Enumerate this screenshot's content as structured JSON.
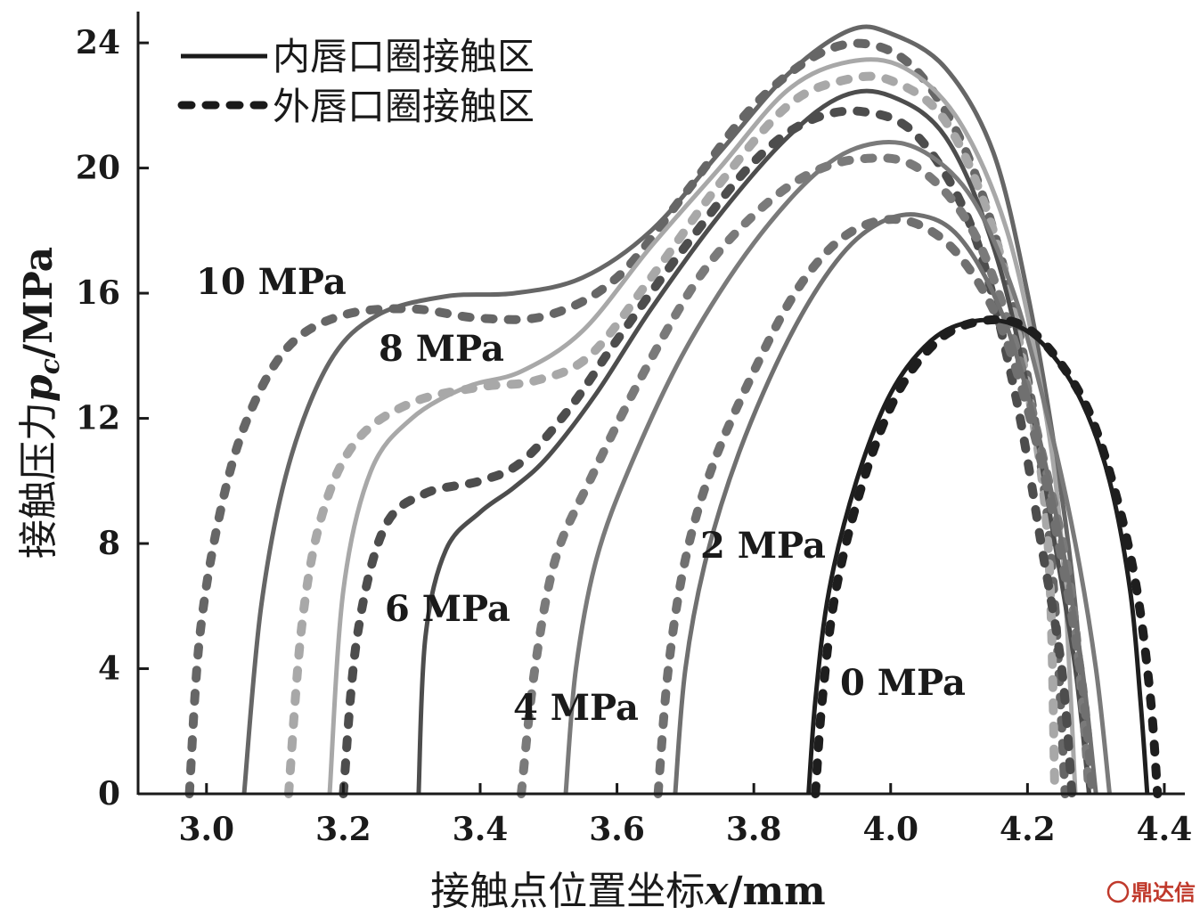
{
  "chart_data": {
    "type": "line",
    "xlabel": {
      "prefix": "接触点位置坐标",
      "symbol": "x",
      "unit": "/mm"
    },
    "ylabel": {
      "prefix": "接触压力",
      "symbol": "p",
      "subscript": "c",
      "unit": "/MPa"
    },
    "xlim": [
      2.9,
      4.43
    ],
    "ylim": [
      0,
      25
    ],
    "xticks": [
      "3.0",
      "3.2",
      "3.4",
      "3.6",
      "3.8",
      "4.0",
      "4.2",
      "4.4"
    ],
    "xtick_values": [
      3.0,
      3.2,
      3.4,
      3.6,
      3.8,
      4.0,
      4.2,
      4.4
    ],
    "yticks": [
      "0",
      "4",
      "8",
      "12",
      "16",
      "20",
      "24"
    ],
    "ytick_values": [
      0,
      4,
      8,
      12,
      16,
      20,
      24
    ],
    "grid": false,
    "legend": {
      "placement": "top-left",
      "entries": [
        {
          "label": "内唇口圈接触区",
          "style": "solid"
        },
        {
          "label": "外唇口圈接触区",
          "style": "dotted"
        }
      ]
    },
    "series": [
      {
        "name": "10 MPa",
        "color": "#666666",
        "points": {
          "solid": [
            [
              3.055,
              0
            ],
            [
              3.08,
              6
            ],
            [
              3.12,
              10.5
            ],
            [
              3.18,
              13.8
            ],
            [
              3.25,
              15.3
            ],
            [
              3.35,
              15.9
            ],
            [
              3.45,
              16
            ],
            [
              3.55,
              16.5
            ],
            [
              3.65,
              18
            ],
            [
              3.75,
              20.5
            ],
            [
              3.85,
              23
            ],
            [
              3.94,
              24.4
            ],
            [
              4.0,
              24.3
            ],
            [
              4.08,
              23.2
            ],
            [
              4.15,
              20.5
            ],
            [
              4.2,
              16
            ],
            [
              4.24,
              11
            ],
            [
              4.27,
              6
            ],
            [
              4.29,
              0
            ]
          ],
          "dotted": [
            [
              2.975,
              0
            ],
            [
              2.99,
              5
            ],
            [
              3.02,
              9
            ],
            [
              3.06,
              12
            ],
            [
              3.12,
              14.3
            ],
            [
              3.2,
              15.3
            ],
            [
              3.3,
              15.5
            ],
            [
              3.4,
              15.2
            ],
            [
              3.5,
              15.3
            ],
            [
              3.6,
              16.5
            ],
            [
              3.7,
              19.2
            ],
            [
              3.8,
              22
            ],
            [
              3.9,
              23.7
            ],
            [
              3.98,
              23.9
            ],
            [
              4.05,
              22.8
            ],
            [
              4.12,
              20
            ],
            [
              4.18,
              15.5
            ],
            [
              4.22,
              10.5
            ],
            [
              4.24,
              6
            ],
            [
              4.255,
              0
            ]
          ]
        }
      },
      {
        "name": "8 MPa",
        "color": "#a8a8a8",
        "points": {
          "solid": [
            [
              3.18,
              0
            ],
            [
              3.2,
              6.5
            ],
            [
              3.24,
              10.3
            ],
            [
              3.3,
              12
            ],
            [
              3.38,
              13
            ],
            [
              3.46,
              13.5
            ],
            [
              3.55,
              14.8
            ],
            [
              3.65,
              17.5
            ],
            [
              3.75,
              20
            ],
            [
              3.85,
              22.5
            ],
            [
              3.94,
              23.4
            ],
            [
              4.02,
              23.2
            ],
            [
              4.1,
              21.5
            ],
            [
              4.17,
              18
            ],
            [
              4.22,
              13
            ],
            [
              4.25,
              8
            ],
            [
              4.27,
              0
            ]
          ],
          "dotted": [
            [
              3.12,
              0
            ],
            [
              3.14,
              5.5
            ],
            [
              3.17,
              9
            ],
            [
              3.22,
              11.3
            ],
            [
              3.3,
              12.5
            ],
            [
              3.4,
              13
            ],
            [
              3.48,
              13.2
            ],
            [
              3.56,
              14
            ],
            [
              3.65,
              16.5
            ],
            [
              3.75,
              19.5
            ],
            [
              3.85,
              22
            ],
            [
              3.93,
              22.8
            ],
            [
              4.0,
              22.8
            ],
            [
              4.08,
              21.5
            ],
            [
              4.15,
              18
            ],
            [
              4.2,
              13
            ],
            [
              4.23,
              8
            ],
            [
              4.24,
              0
            ]
          ]
        }
      },
      {
        "name": "6 MPa",
        "color": "#4d4d4d",
        "points": {
          "solid": [
            [
              3.31,
              0
            ],
            [
              3.32,
              5
            ],
            [
              3.35,
              7.8
            ],
            [
              3.4,
              9
            ],
            [
              3.45,
              9.8
            ],
            [
              3.5,
              10.8
            ],
            [
              3.57,
              12.8
            ],
            [
              3.65,
              15.5
            ],
            [
              3.75,
              18.5
            ],
            [
              3.85,
              21
            ],
            [
              3.93,
              22.3
            ],
            [
              4.0,
              22.3
            ],
            [
              4.08,
              21
            ],
            [
              4.15,
              17.5
            ],
            [
              4.2,
              13
            ],
            [
              4.24,
              8
            ],
            [
              4.27,
              4
            ],
            [
              4.29,
              0
            ]
          ],
          "dotted": [
            [
              3.2,
              0
            ],
            [
              3.22,
              5
            ],
            [
              3.26,
              8.5
            ],
            [
              3.32,
              9.6
            ],
            [
              3.4,
              10
            ],
            [
              3.46,
              10.6
            ],
            [
              3.53,
              12.3
            ],
            [
              3.6,
              14.5
            ],
            [
              3.7,
              17.5
            ],
            [
              3.8,
              20.2
            ],
            [
              3.88,
              21.5
            ],
            [
              3.96,
              21.8
            ],
            [
              4.04,
              21
            ],
            [
              4.12,
              18
            ],
            [
              4.18,
              13
            ],
            [
              4.22,
              8
            ],
            [
              4.25,
              4
            ],
            [
              4.265,
              0
            ]
          ]
        }
      },
      {
        "name": "4 MPa",
        "color": "#7a7a7a",
        "points": {
          "solid": [
            [
              3.525,
              0
            ],
            [
              3.54,
              4
            ],
            [
              3.57,
              7.5
            ],
            [
              3.62,
              10.5
            ],
            [
              3.7,
              14.2
            ],
            [
              3.8,
              17.6
            ],
            [
              3.9,
              20
            ],
            [
              3.98,
              20.8
            ],
            [
              4.05,
              20.5
            ],
            [
              4.12,
              19
            ],
            [
              4.18,
              16
            ],
            [
              4.23,
              12
            ],
            [
              4.27,
              8
            ],
            [
              4.3,
              4
            ],
            [
              4.32,
              0
            ]
          ],
          "dotted": [
            [
              3.46,
              0
            ],
            [
              3.48,
              4
            ],
            [
              3.51,
              7.5
            ],
            [
              3.56,
              10
            ],
            [
              3.64,
              13.5
            ],
            [
              3.72,
              16.5
            ],
            [
              3.8,
              18.5
            ],
            [
              3.88,
              19.8
            ],
            [
              3.96,
              20.3
            ],
            [
              4.04,
              20
            ],
            [
              4.12,
              18
            ],
            [
              4.18,
              14.5
            ],
            [
              4.22,
              11
            ],
            [
              4.26,
              7
            ],
            [
              4.28,
              3
            ],
            [
              4.29,
              0
            ]
          ]
        }
      },
      {
        "name": "2 MPa",
        "color": "#707070",
        "points": {
          "solid": [
            [
              3.685,
              0
            ],
            [
              3.7,
              4
            ],
            [
              3.73,
              7.5
            ],
            [
              3.78,
              11
            ],
            [
              3.85,
              14.5
            ],
            [
              3.92,
              17
            ],
            [
              3.98,
              18.2
            ],
            [
              4.04,
              18.5
            ],
            [
              4.1,
              17.8
            ],
            [
              4.16,
              15.5
            ],
            [
              4.21,
              12
            ],
            [
              4.25,
              8
            ],
            [
              4.28,
              4
            ],
            [
              4.3,
              0
            ]
          ],
          "dotted": [
            [
              3.66,
              0
            ],
            [
              3.675,
              4
            ],
            [
              3.7,
              7.5
            ],
            [
              3.74,
              10.5
            ],
            [
              3.8,
              13.5
            ],
            [
              3.86,
              16
            ],
            [
              3.92,
              17.6
            ],
            [
              3.98,
              18.3
            ],
            [
              4.04,
              18.2
            ],
            [
              4.1,
              17.2
            ],
            [
              4.16,
              15
            ],
            [
              4.21,
              11.5
            ],
            [
              4.25,
              7.5
            ],
            [
              4.28,
              3.5
            ],
            [
              4.295,
              0
            ]
          ]
        }
      },
      {
        "name": "0 MPa",
        "color": "#1e1e1e",
        "points": {
          "solid": [
            [
              3.88,
              0
            ],
            [
              3.89,
              3
            ],
            [
              3.91,
              6.5
            ],
            [
              3.95,
              10
            ],
            [
              4.0,
              12.8
            ],
            [
              4.06,
              14.5
            ],
            [
              4.12,
              15.1
            ],
            [
              4.18,
              15
            ],
            [
              4.23,
              14.2
            ],
            [
              4.28,
              12.5
            ],
            [
              4.32,
              10
            ],
            [
              4.35,
              6.5
            ],
            [
              4.365,
              3
            ],
            [
              4.375,
              0
            ]
          ],
          "dotted": [
            [
              3.89,
              0
            ],
            [
              3.9,
              3
            ],
            [
              3.92,
              6.5
            ],
            [
              3.96,
              10
            ],
            [
              4.01,
              12.8
            ],
            [
              4.07,
              14.5
            ],
            [
              4.13,
              15.1
            ],
            [
              4.19,
              15
            ],
            [
              4.24,
              14
            ],
            [
              4.29,
              12.2
            ],
            [
              4.33,
              9.5
            ],
            [
              4.36,
              6.5
            ],
            [
              4.38,
              3
            ],
            [
              4.39,
              0
            ]
          ]
        }
      }
    ],
    "series_labels": [
      {
        "text": "10 MPa",
        "series": "10 MPa"
      },
      {
        "text": "8 MPa",
        "series": "8 MPa"
      },
      {
        "text": "6 MPa",
        "series": "6 MPa"
      },
      {
        "text": "4 MPa",
        "series": "4 MPa"
      },
      {
        "text": "2 MPa",
        "series": "2 MPa"
      },
      {
        "text": "0 MPa",
        "series": "0 MPa"
      }
    ]
  },
  "watermark": {
    "text": "鼎达信",
    "icon": "logo-icon",
    "color": "#c0392b"
  }
}
